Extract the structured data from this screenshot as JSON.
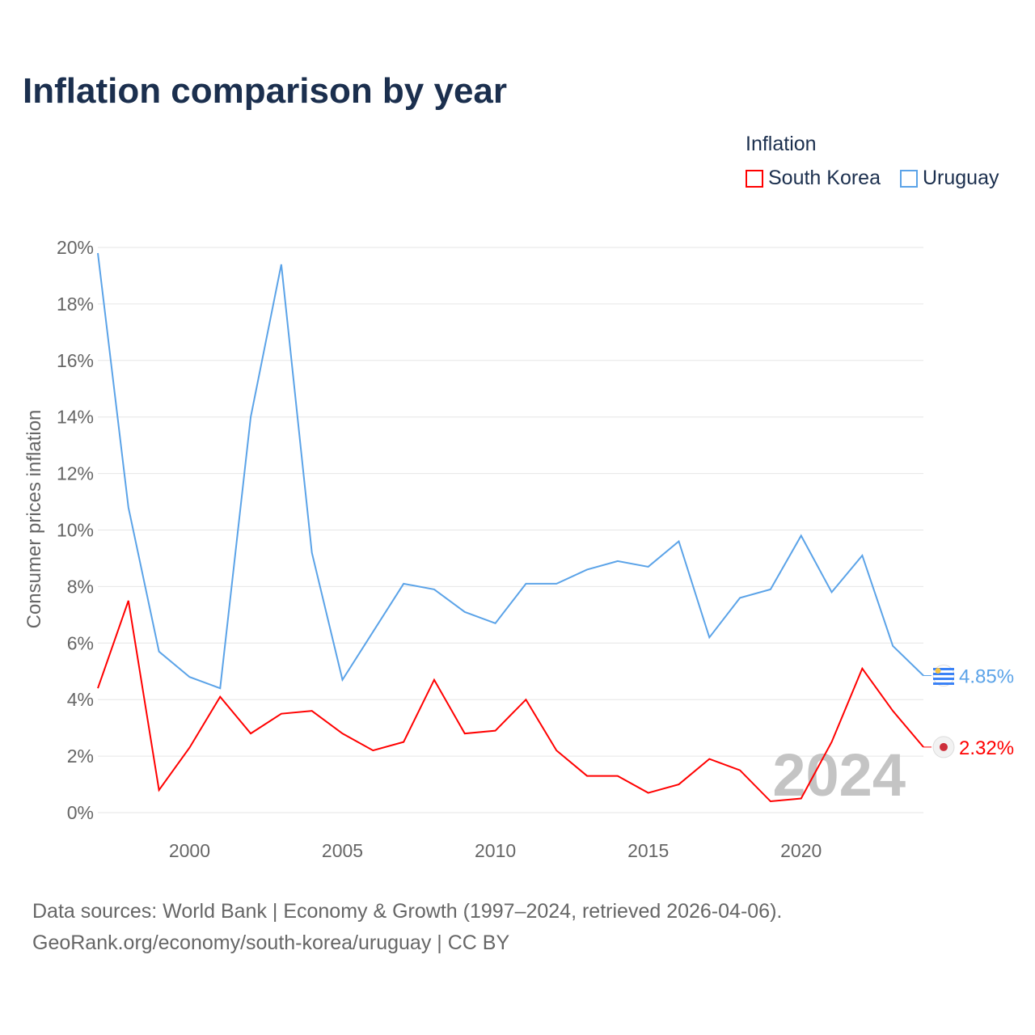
{
  "chart_data": {
    "type": "line",
    "title": "Inflation comparison by year",
    "ylabel": "Consumer prices inflation",
    "xlabel": "",
    "legend_title": "Inflation",
    "legend_position": "top-right",
    "ylim": [
      0,
      20
    ],
    "xlim": [
      1997,
      2024
    ],
    "yticks": [
      "0%",
      "2%",
      "4%",
      "6%",
      "8%",
      "10%",
      "12%",
      "14%",
      "16%",
      "18%",
      "20%"
    ],
    "xticks": [
      "2000",
      "2005",
      "2010",
      "2015",
      "2020"
    ],
    "grid": true,
    "watermark": "2024",
    "x": [
      1997,
      1998,
      1999,
      2000,
      2001,
      2002,
      2003,
      2004,
      2005,
      2006,
      2007,
      2008,
      2009,
      2010,
      2011,
      2012,
      2013,
      2014,
      2015,
      2016,
      2017,
      2018,
      2019,
      2020,
      2021,
      2022,
      2023,
      2024
    ],
    "series": [
      {
        "name": "South Korea",
        "color": "#ff0000",
        "end_label": "2.32%",
        "values": [
          4.4,
          7.5,
          0.8,
          2.3,
          4.1,
          2.8,
          3.5,
          3.6,
          2.8,
          2.2,
          2.5,
          4.7,
          2.8,
          2.9,
          4.0,
          2.2,
          1.3,
          1.3,
          0.7,
          1.0,
          1.9,
          1.5,
          0.4,
          0.5,
          2.5,
          5.1,
          3.6,
          2.32
        ]
      },
      {
        "name": "Uruguay",
        "color": "#5ba3e8",
        "end_label": "4.85%",
        "values": [
          19.8,
          10.8,
          5.7,
          4.8,
          4.4,
          14.0,
          19.4,
          9.2,
          4.7,
          6.4,
          8.1,
          7.9,
          7.1,
          6.7,
          8.1,
          8.1,
          8.6,
          8.9,
          8.7,
          9.6,
          6.2,
          7.6,
          7.9,
          9.8,
          7.8,
          9.1,
          5.9,
          4.85
        ]
      }
    ]
  },
  "footer": {
    "line1": "Data sources: World Bank | Economy & Growth (1997–2024, retrieved 2026-04-06).",
    "line2": "GeoRank.org/economy/south-korea/uruguay | CC BY"
  }
}
